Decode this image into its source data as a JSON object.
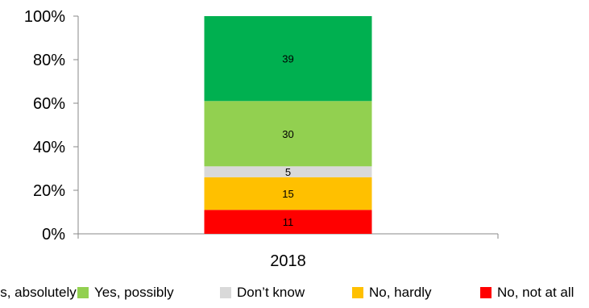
{
  "chart_data": {
    "type": "bar",
    "stacked": true,
    "percent_stacked": true,
    "categories": [
      "2018"
    ],
    "series": [
      {
        "name": "Yes, absolutely",
        "values": [
          39
        ],
        "color": "#00b050"
      },
      {
        "name": "Yes, possibly",
        "values": [
          30
        ],
        "color": "#92d050"
      },
      {
        "name": "Don’t know",
        "values": [
          5
        ],
        "color": "#d9d9d9"
      },
      {
        "name": "No, hardly",
        "values": [
          15
        ],
        "color": "#ffc000"
      },
      {
        "name": "No, not at all",
        "values": [
          11
        ],
        "color": "#ff0000"
      }
    ],
    "y_ticks": [
      "0%",
      "20%",
      "40%",
      "60%",
      "80%",
      "100%"
    ],
    "ylim": [
      0,
      100
    ],
    "grid": false,
    "legend_position": "bottom",
    "stack_order_bottom_to_top": [
      "No, not at all",
      "No, hardly",
      "Don’t know",
      "Yes, possibly",
      "Yes, absolutely"
    ]
  }
}
